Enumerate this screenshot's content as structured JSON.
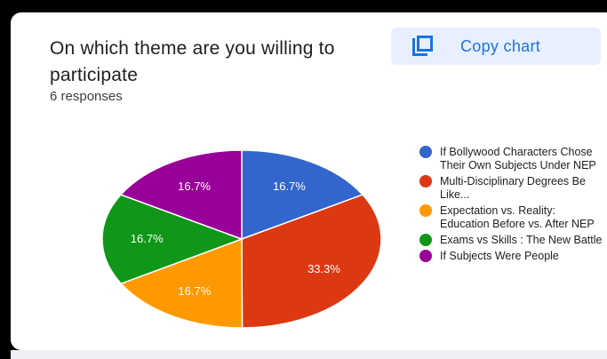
{
  "card": {
    "title": "On which theme are you willing to participate",
    "responses": "6 responses",
    "copy_button": {
      "label": "Copy chart",
      "icon": "copy-icon"
    }
  },
  "chart_data": {
    "type": "pie",
    "title": "On which theme are you willing to participate",
    "legend_position": "right",
    "slices": [
      {
        "name": "If Bollywood Characters Chose Their Own Subjects Under NEP",
        "percent": 16.7,
        "label": "16.7%",
        "color": "#3366cc"
      },
      {
        "name": "Multi-Disciplinary Degrees Be Like...",
        "percent": 33.3,
        "label": "33.3%",
        "color": "#dc3912"
      },
      {
        "name": "Expectation vs. Reality: Education Before vs. After NEP",
        "percent": 16.7,
        "label": "16.7%",
        "color": "#ff9900"
      },
      {
        "name": "Exams vs Skills : The New Battle",
        "percent": 16.7,
        "label": "16.7%",
        "color": "#109618"
      },
      {
        "name": "If Subjects Were People",
        "percent": 16.7,
        "label": "16.7%",
        "color": "#990099"
      }
    ]
  }
}
